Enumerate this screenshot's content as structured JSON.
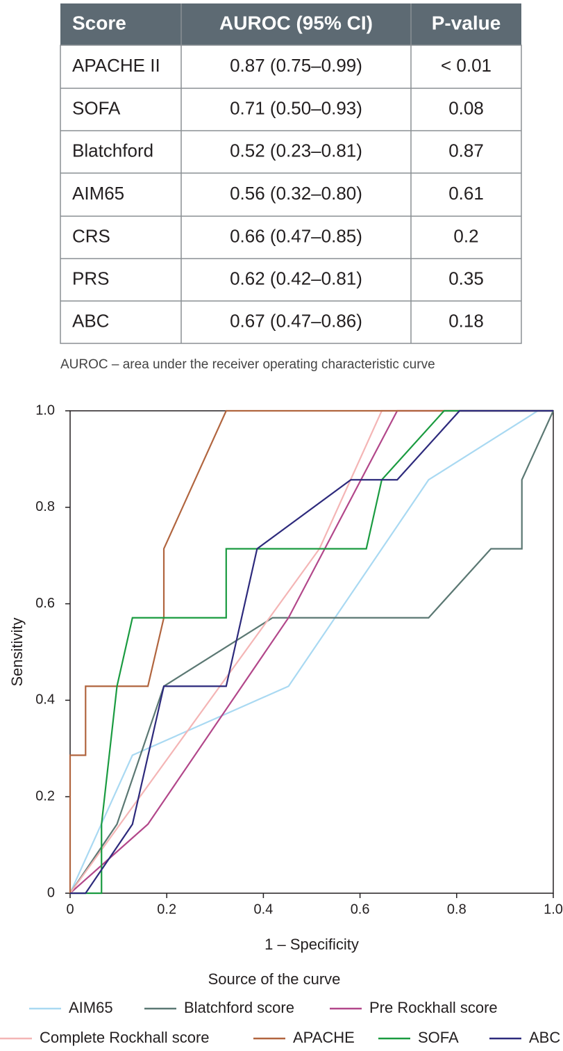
{
  "table": {
    "header": [
      "Score",
      "AUROC (95% CI)",
      "P-value"
    ],
    "rows": [
      [
        "APACHE II",
        "0.87 (0.75–0.99)",
        "< 0.01"
      ],
      [
        "SOFA",
        "0.71 (0.50–0.93)",
        "0.08"
      ],
      [
        "Blatchford",
        "0.52 (0.23–0.81)",
        "0.87"
      ],
      [
        "AIM65",
        "0.56 (0.32–0.80)",
        "0.61"
      ],
      [
        "CRS",
        "0.66 (0.47–0.85)",
        "0.2"
      ],
      [
        "PRS",
        "0.62 (0.42–0.81)",
        "0.35"
      ],
      [
        "ABC",
        "0.67 (0.47–0.86)",
        "0.18"
      ]
    ],
    "caption": "AUROC – area under the receiver operating characteristic curve"
  },
  "chart_data": {
    "type": "line",
    "x_label": "1 – Specificity",
    "y_label": "Sensitivity",
    "legend_title": "Source of the curve",
    "xlim": [
      0,
      1
    ],
    "ylim": [
      0,
      1
    ],
    "xticks": [
      0,
      0.2,
      0.4,
      0.6,
      0.8,
      {
        "value": 1,
        "label": "1.0"
      }
    ],
    "yticks": [
      0,
      0.2,
      0.4,
      0.6,
      0.8,
      {
        "value": 1,
        "label": "1.0"
      }
    ],
    "series": [
      {
        "name": "AIM65",
        "color": "#a9d9f2",
        "x": [
          0,
          0.129,
          0.452,
          0.742,
          0.968,
          1
        ],
        "values": [
          0,
          0.286,
          0.429,
          0.857,
          1,
          1
        ]
      },
      {
        "name": "Blatchford score",
        "color": "#5b7873",
        "x": [
          0,
          0.097,
          0.194,
          0.419,
          0.742,
          0.871,
          0.935,
          0.935,
          1
        ],
        "values": [
          0,
          0.143,
          0.429,
          0.571,
          0.571,
          0.714,
          0.714,
          0.857,
          1
        ]
      },
      {
        "name": "Pre Rockhall score",
        "color": "#b2478a",
        "x": [
          0,
          0.161,
          0.452,
          0.677,
          1
        ],
        "values": [
          0,
          0.143,
          0.571,
          1,
          1
        ]
      },
      {
        "name": "Complete Rockhall score",
        "color": "#f4b5b5",
        "x": [
          0,
          0.516,
          0.645,
          1
        ],
        "values": [
          0,
          0.714,
          1,
          1
        ]
      },
      {
        "name": "APACHE",
        "color": "#b1653f",
        "x": [
          0,
          0,
          0.032,
          0.032,
          0.161,
          0.194,
          0.194,
          0.323,
          1
        ],
        "values": [
          0,
          0.286,
          0.286,
          0.429,
          0.429,
          0.571,
          0.714,
          1,
          1
        ]
      },
      {
        "name": "SOFA",
        "color": "#1a9b40",
        "x": [
          0,
          0.065,
          0.065,
          0.097,
          0.129,
          0.323,
          0.323,
          0.613,
          0.645,
          0.774,
          1
        ],
        "values": [
          0,
          0,
          0.143,
          0.429,
          0.571,
          0.571,
          0.714,
          0.714,
          0.857,
          1,
          1
        ]
      },
      {
        "name": "ABC",
        "color": "#2d2a7c",
        "x": [
          0,
          0.032,
          0.129,
          0.194,
          0.323,
          0.387,
          0.581,
          0.677,
          0.806,
          1
        ],
        "values": [
          0,
          0,
          0.143,
          0.429,
          0.429,
          0.714,
          0.857,
          0.857,
          1,
          1
        ]
      }
    ]
  }
}
